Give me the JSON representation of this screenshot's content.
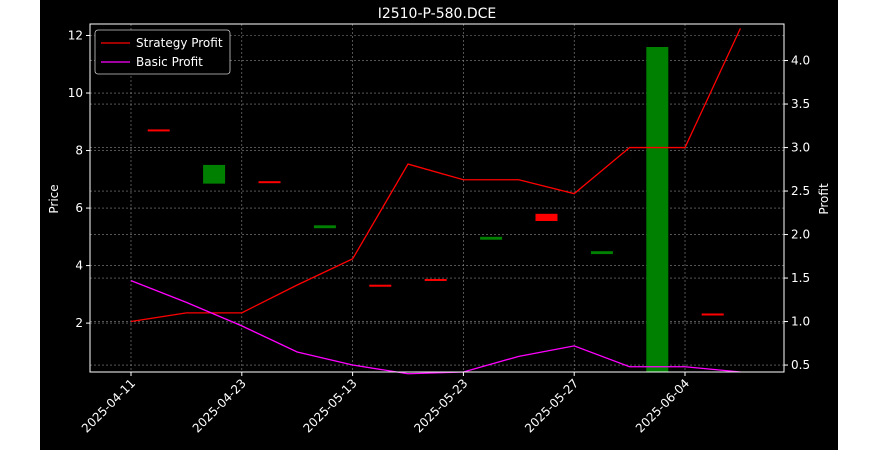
{
  "chart_data": {
    "type": "candlestick+line",
    "title": "I2510-P-580.DCE",
    "ylabel_left": "Price",
    "ylabel_right": "Profit",
    "xlabel": "",
    "grid": true,
    "legend_position": "upper-left",
    "background_color": "#000000",
    "text_color": "#ffffff",
    "x_tick_labels": [
      "2025-04-11",
      "2025-04-23",
      "2025-05-13",
      "2025-05-23",
      "2025-05-27",
      "2025-06-04"
    ],
    "y_left_ticks": [
      2,
      4,
      6,
      8,
      10,
      12
    ],
    "y_left_lim": [
      0.3,
      12.4
    ],
    "y_right_ticks": [
      0.5,
      1.0,
      1.5,
      2.0,
      2.5,
      3.0,
      3.5,
      4.0
    ],
    "y_right_lim": [
      0.42,
      4.42
    ],
    "candles": [
      {
        "index": 0,
        "open": 8.7,
        "close": 8.7,
        "color": "#ff0000"
      },
      {
        "index": 1,
        "open": 6.85,
        "close": 7.5,
        "color": "#008000"
      },
      {
        "index": 2,
        "open": 6.9,
        "close": 6.9,
        "color": "#ff0000"
      },
      {
        "index": 3,
        "open": 5.3,
        "close": 5.4,
        "color": "#008000"
      },
      {
        "index": 4,
        "open": 3.3,
        "close": 3.3,
        "color": "#ff0000"
      },
      {
        "index": 5,
        "open": 3.5,
        "close": 3.5,
        "color": "#ff0000"
      },
      {
        "index": 6,
        "open": 4.9,
        "close": 5.0,
        "color": "#008000"
      },
      {
        "index": 7,
        "open": 5.8,
        "close": 5.55,
        "color": "#ff0000"
      },
      {
        "index": 8,
        "open": 4.4,
        "close": 4.5,
        "color": "#008000"
      },
      {
        "index": 9,
        "open": 0.3,
        "close": 11.6,
        "color": "#008000"
      },
      {
        "index": 10,
        "open": 2.3,
        "close": 2.3,
        "color": "#ff0000"
      }
    ],
    "series": [
      {
        "name": "Strategy Profit",
        "color": "#ff0000",
        "axis": "right",
        "values": [
          1.0,
          1.1,
          1.1,
          1.42,
          1.72,
          2.81,
          2.63,
          2.63,
          2.47,
          3.0,
          3.0,
          4.37
        ]
      },
      {
        "name": "Basic Profit",
        "color": "#ff00ff",
        "axis": "right",
        "values": [
          1.47,
          1.22,
          0.95,
          0.65,
          0.5,
          0.4,
          0.42,
          0.6,
          0.72,
          0.48,
          0.48,
          0.42
        ]
      }
    ]
  }
}
